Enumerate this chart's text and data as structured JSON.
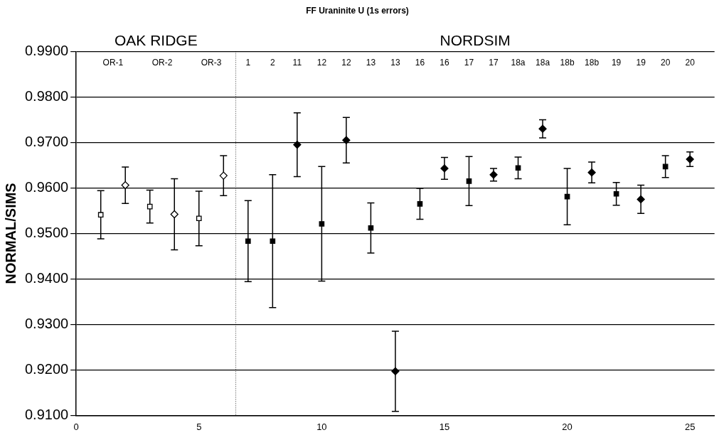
{
  "chart_data": {
    "type": "scatter",
    "title": "FF Uraninite U (1s errors)",
    "ylabel": "NORMAL/SIMS",
    "xlim": [
      0,
      26
    ],
    "xticks": [
      0,
      5,
      10,
      15,
      20,
      25
    ],
    "ylim": [
      0.91,
      0.99
    ],
    "yticks": [
      {
        "value": 0.91,
        "label": "0.9100"
      },
      {
        "value": 0.92,
        "label": "0.9200"
      },
      {
        "value": 0.93,
        "label": "0.9300"
      },
      {
        "value": 0.94,
        "label": "0.9400"
      },
      {
        "value": 0.95,
        "label": "0.9500"
      },
      {
        "value": 0.96,
        "label": "0.9600"
      },
      {
        "value": 0.97,
        "label": "0.9700"
      },
      {
        "value": 0.98,
        "label": "0.9800"
      },
      {
        "value": 0.99,
        "label": "0.9900"
      }
    ],
    "grid": "y",
    "legend": false,
    "series": [
      {
        "color": "#ffffff",
        "marker": "square",
        "x": [
          1,
          3,
          5
        ],
        "values": [
          0.9541,
          0.9559,
          0.9533
        ],
        "errors": [
          0.0053,
          0.0036,
          0.006
        ]
      },
      {
        "color": "#ffffff",
        "marker": "diamond",
        "x": [
          2,
          4,
          6
        ],
        "values": [
          0.9606,
          0.9542,
          0.9627
        ],
        "errors": [
          0.004,
          0.0078,
          0.0044
        ]
      },
      {
        "color": "#000000",
        "marker": "square",
        "x": [
          7,
          8,
          10,
          12,
          14,
          16,
          18,
          20,
          22,
          24
        ],
        "values": [
          0.9483,
          0.9483,
          0.9521,
          0.9512,
          0.9565,
          0.9615,
          0.9644,
          0.9581,
          0.9587,
          0.9647
        ],
        "errors": [
          0.0089,
          0.0146,
          0.0126,
          0.0055,
          0.0034,
          0.0054,
          0.0024,
          0.0062,
          0.0025,
          0.0024
        ]
      },
      {
        "color": "#000000",
        "marker": "diamond",
        "x": [
          9,
          11,
          13,
          15,
          17,
          19,
          21,
          23,
          25
        ],
        "values": [
          0.9695,
          0.9705,
          0.9197,
          0.9643,
          0.9629,
          0.973,
          0.9634,
          0.9575,
          0.9663
        ],
        "errors": [
          0.007,
          0.005,
          0.0088,
          0.0024,
          0.0014,
          0.002,
          0.0023,
          0.0031,
          0.0016
        ]
      }
    ],
    "ref_lines": [
      {
        "axis": "x",
        "value": 6.5,
        "line_style": "dotted",
        "color": "#000000"
      }
    ],
    "annotations": [
      "OAK RIDGE",
      "NORDSIM",
      "OR-1",
      "OR-2",
      "OR-3",
      "1",
      "2",
      "11",
      "12",
      "12",
      "13",
      "13",
      "16",
      "16",
      "17",
      "17",
      "18a",
      "18a",
      "18b",
      "18b",
      "19",
      "19",
      "20",
      "20"
    ]
  }
}
